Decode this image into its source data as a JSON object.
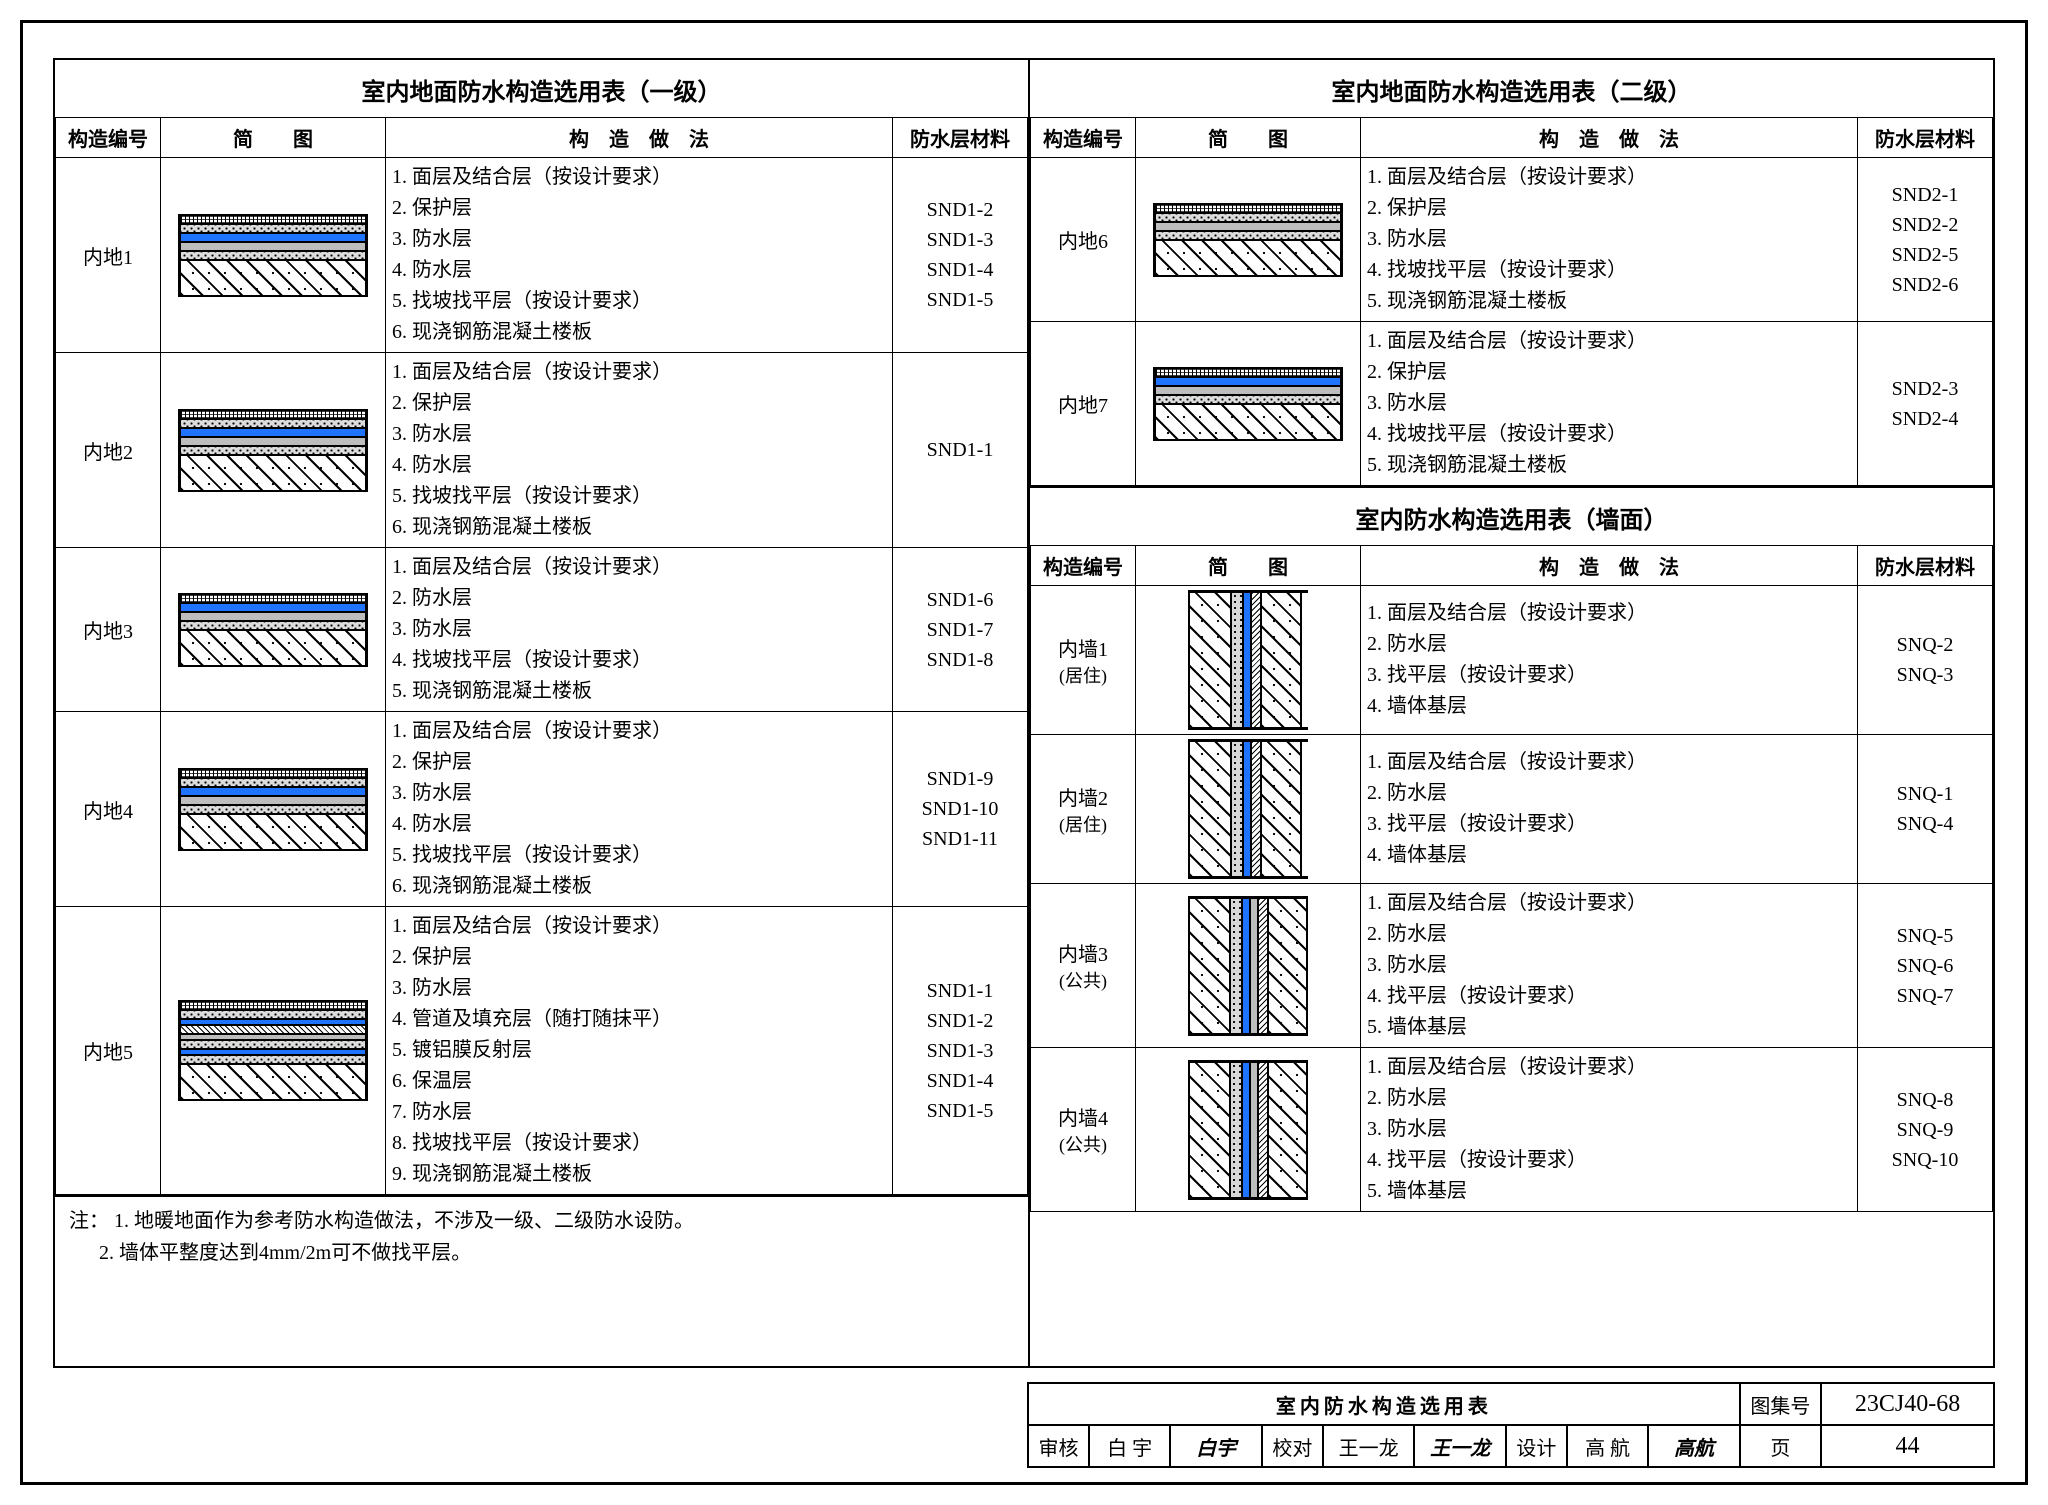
{
  "headers": {
    "id": "构造编号",
    "dia": "简　　图",
    "method": "构　造　做　法",
    "mat": "防水层材料"
  },
  "leftTitle": "室内地面防水构造选用表（一级）",
  "leftRows": [
    {
      "id": "内地1",
      "dia": "A",
      "steps": [
        "1.  面层及结合层（按设计要求）",
        "2.  保护层",
        "3.  防水层",
        "4.  防水层",
        "5.  找坡找平层（按设计要求）",
        "6.  现浇钢筋混凝土楼板"
      ],
      "mats": [
        "SND1-2",
        "SND1-3",
        "SND1-4",
        "SND1-5"
      ]
    },
    {
      "id": "内地2",
      "dia": "A",
      "steps": [
        "1.  面层及结合层（按设计要求）",
        "2.  保护层",
        "3.  防水层",
        "4.  防水层",
        "5.  找坡找平层（按设计要求）",
        "6.  现浇钢筋混凝土楼板"
      ],
      "mats": [
        "SND1-1"
      ]
    },
    {
      "id": "内地3",
      "dia": "B",
      "steps": [
        "1.  面层及结合层（按设计要求）",
        "2.  防水层",
        "3.  防水层",
        "4.  找坡找平层（按设计要求）",
        "5.  现浇钢筋混凝土楼板"
      ],
      "mats": [
        "SND1-6",
        "SND1-7",
        "SND1-8"
      ]
    },
    {
      "id": "内地4",
      "dia": "A",
      "steps": [
        "1.  面层及结合层（按设计要求）",
        "2.  保护层",
        "3.  防水层",
        "4.  防水层",
        "5.  找坡找平层（按设计要求）",
        "6.  现浇钢筋混凝土楼板"
      ],
      "mats": [
        "SND1-9",
        "SND1-10",
        "SND1-11"
      ]
    },
    {
      "id": "内地5",
      "dia": "C",
      "steps": [
        "1.  面层及结合层（按设计要求）",
        "2.  保护层",
        "3.  防水层",
        "4.  管道及填充层（随打随抹平）",
        "5.  镀铝膜反射层",
        "6.  保温层",
        "7.  防水层",
        "8.  找坡找平层（按设计要求）",
        "9.  现浇钢筋混凝土楼板"
      ],
      "mats": [
        "SND1-1",
        "SND1-2",
        "SND1-3",
        "SND1-4",
        "SND1-5"
      ]
    }
  ],
  "rightTopTitle": "室内地面防水构造选用表（二级）",
  "rightTopRows": [
    {
      "id": "内地6",
      "dia": "D",
      "steps": [
        "1.  面层及结合层（按设计要求）",
        "2.  保护层",
        "3.  防水层",
        "4.  找坡找平层（按设计要求）",
        "5.  现浇钢筋混凝土楼板"
      ],
      "mats": [
        "SND2-1",
        "SND2-2",
        "SND2-5",
        "SND2-6"
      ]
    },
    {
      "id": "内地7",
      "dia": "B",
      "steps": [
        "1.  面层及结合层（按设计要求）",
        "2.  保护层",
        "3.  防水层",
        "4.  找坡找平层（按设计要求）",
        "5.  现浇钢筋混凝土楼板"
      ],
      "mats": [
        "SND2-3",
        "SND2-4"
      ]
    }
  ],
  "rightBotTitle": "室内防水构造选用表（墙面）",
  "rightBotRows": [
    {
      "id": "内墙1",
      "sub": "(居住)",
      "dia": "W1",
      "steps": [
        "1.  面层及结合层（按设计要求）",
        "2.  防水层",
        "3.  找平层（按设计要求）",
        "4.  墙体基层"
      ],
      "mats": [
        "SNQ-2",
        "SNQ-3"
      ]
    },
    {
      "id": "内墙2",
      "sub": "(居住)",
      "dia": "W1",
      "steps": [
        "1.  面层及结合层（按设计要求）",
        "2.  防水层",
        "3.  找平层（按设计要求）",
        "4.  墙体基层"
      ],
      "mats": [
        "SNQ-1",
        "SNQ-4"
      ]
    },
    {
      "id": "内墙3",
      "sub": "(公共)",
      "dia": "W2",
      "steps": [
        "1.  面层及结合层（按设计要求）",
        "2.  防水层",
        "3.  防水层",
        "4.  找平层（按设计要求）",
        "5.  墙体基层"
      ],
      "mats": [
        "SNQ-5",
        "SNQ-6",
        "SNQ-7"
      ]
    },
    {
      "id": "内墙4",
      "sub": "(公共)",
      "dia": "W2",
      "steps": [
        "1.  面层及结合层（按设计要求）",
        "2.  防水层",
        "3.  防水层",
        "4.  找平层（按设计要求）",
        "5.  墙体基层"
      ],
      "mats": [
        "SNQ-8",
        "SNQ-9",
        "SNQ-10"
      ]
    }
  ],
  "notes": {
    "lead": "注：",
    "l1": "1.  地暖地面作为参考防水构造做法，不涉及一级、二级防水设防。",
    "l2": "2.  墙体平整度达到4mm/2m可不做找平层。"
  },
  "titleBlock": {
    "docTitle": "室内防水构造选用表",
    "atlasLabel": "图集号",
    "atlasNo": "23CJ40-68",
    "shLbl": "审核",
    "shName": "白 宇",
    "shSig": "白宇",
    "jdLbl": "校对",
    "jdName": "王一龙",
    "jdSig": "王一龙",
    "sjLbl": "设计",
    "sjName": "高 航",
    "sjSig": "高航",
    "pageLbl": "页",
    "pageNo": "44"
  }
}
